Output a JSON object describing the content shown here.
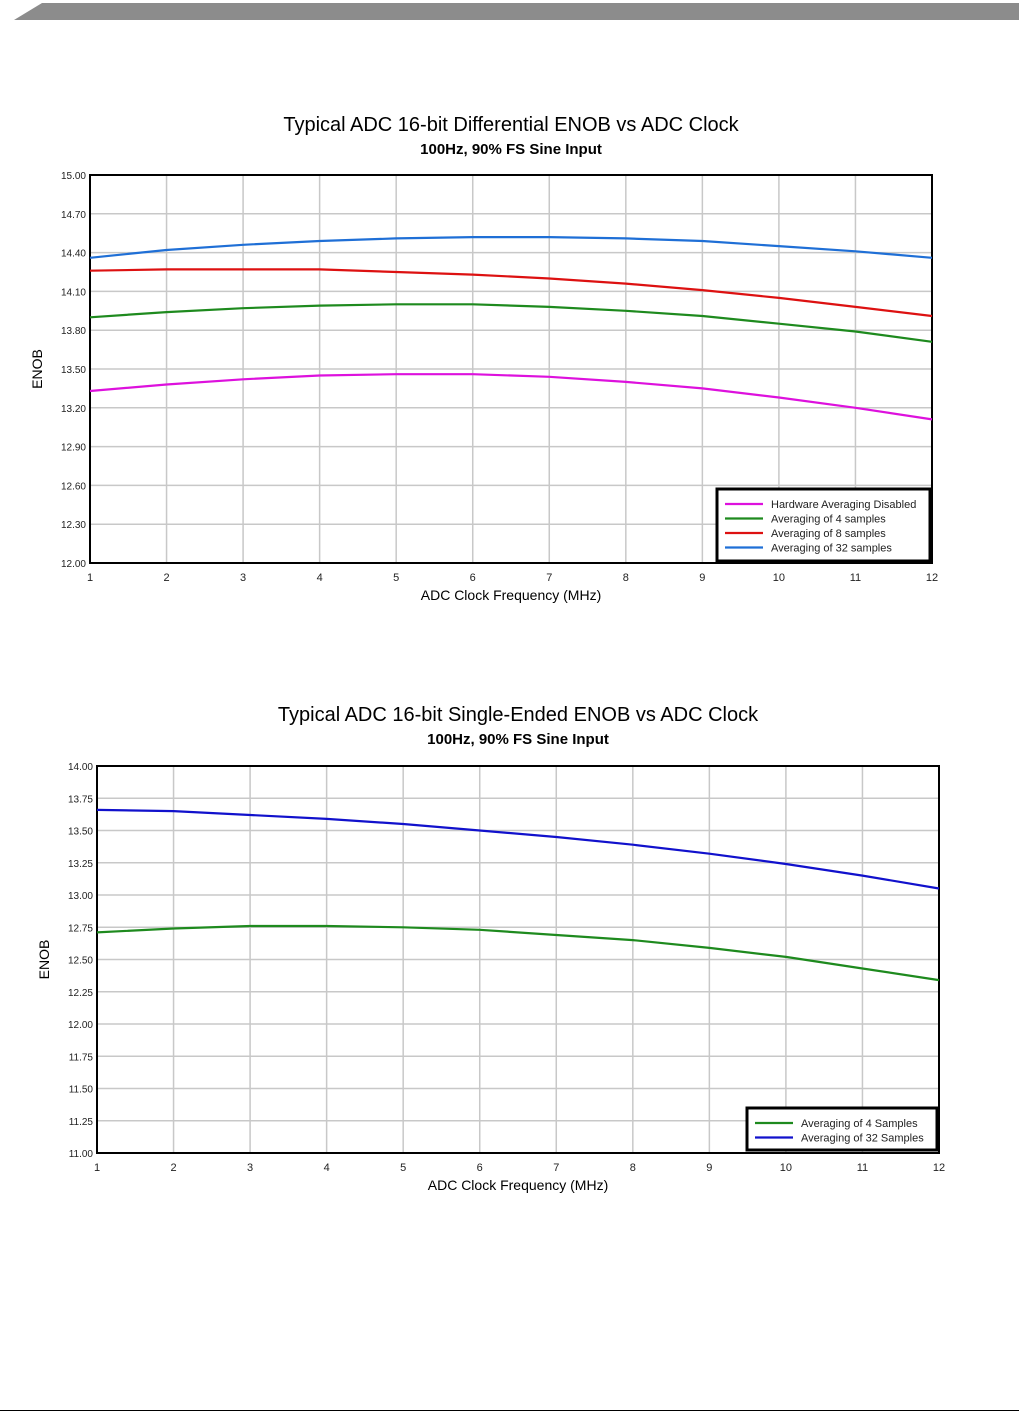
{
  "colors": {
    "header_band": "#8c8c8c",
    "grid": "#c8c8c8",
    "magenta": "#dd11dd",
    "green": "#1e8a1e",
    "red": "#dd1111",
    "blue": "#1f6fd6",
    "navy_blue": "#1111cc"
  },
  "chart_data": [
    {
      "type": "line",
      "title": "Typical ADC 16-bit Differential ENOB vs ADC Clock",
      "subtitle": "100Hz, 90% FS Sine Input",
      "xlabel": "ADC Clock Frequency (MHz)",
      "ylabel": "ENOB",
      "xlim": [
        1,
        12
      ],
      "ylim": [
        12.0,
        15.0
      ],
      "x_ticks": [
        "1",
        "2",
        "3",
        "4",
        "5",
        "6",
        "7",
        "8",
        "9",
        "10",
        "11",
        "12"
      ],
      "y_ticks": [
        "15.00",
        "14.70",
        "14.40",
        "14.10",
        "13.80",
        "13.50",
        "13.20",
        "12.90",
        "12.60",
        "12.30",
        "12.00"
      ],
      "grid": true,
      "legend_position": "bottom-right",
      "x": [
        1,
        2,
        3,
        4,
        5,
        6,
        7,
        8,
        9,
        10,
        11,
        12
      ],
      "series": [
        {
          "name": "Hardware Averaging Disabled",
          "color": "#dd11dd",
          "values": [
            13.33,
            13.38,
            13.42,
            13.45,
            13.46,
            13.46,
            13.44,
            13.4,
            13.35,
            13.28,
            13.2,
            13.11
          ]
        },
        {
          "name": "Averaging of 4 samples",
          "color": "#1e8a1e",
          "values": [
            13.9,
            13.94,
            13.97,
            13.99,
            14.0,
            14.0,
            13.98,
            13.95,
            13.91,
            13.85,
            13.79,
            13.71
          ]
        },
        {
          "name": "Averaging of 8 samples",
          "color": "#dd1111",
          "values": [
            14.26,
            14.27,
            14.27,
            14.27,
            14.25,
            14.23,
            14.2,
            14.16,
            14.11,
            14.05,
            13.98,
            13.91
          ]
        },
        {
          "name": "Averaging of 32 samples",
          "color": "#1f6fd6",
          "values": [
            14.36,
            14.42,
            14.46,
            14.49,
            14.51,
            14.52,
            14.52,
            14.51,
            14.49,
            14.45,
            14.41,
            14.36
          ]
        }
      ]
    },
    {
      "type": "line",
      "title": "Typical ADC 16-bit Single-Ended ENOB vs ADC Clock",
      "subtitle": "100Hz, 90% FS Sine Input",
      "xlabel": "ADC Clock Frequency (MHz)",
      "ylabel": "ENOB",
      "xlim": [
        1,
        12
      ],
      "ylim": [
        11.0,
        14.0
      ],
      "x_ticks": [
        "1",
        "2",
        "3",
        "4",
        "5",
        "6",
        "7",
        "8",
        "9",
        "10",
        "11",
        "12"
      ],
      "y_ticks": [
        "14.00",
        "13.75",
        "13.50",
        "13.25",
        "13.00",
        "12.75",
        "12.50",
        "12.25",
        "12.00",
        "11.75",
        "11.50",
        "11.25",
        "11.00"
      ],
      "grid": true,
      "legend_position": "bottom-right",
      "x": [
        1,
        2,
        3,
        4,
        5,
        6,
        7,
        8,
        9,
        10,
        11,
        12
      ],
      "series": [
        {
          "name": "Averaging of 4 Samples",
          "color": "#1e8a1e",
          "values": [
            12.71,
            12.74,
            12.76,
            12.76,
            12.75,
            12.73,
            12.69,
            12.65,
            12.59,
            12.52,
            12.43,
            12.34
          ]
        },
        {
          "name": "Averaging of 32 Samples",
          "color": "#1111cc",
          "values": [
            13.66,
            13.65,
            13.62,
            13.59,
            13.55,
            13.5,
            13.45,
            13.39,
            13.32,
            13.24,
            13.15,
            13.05
          ]
        }
      ]
    }
  ]
}
